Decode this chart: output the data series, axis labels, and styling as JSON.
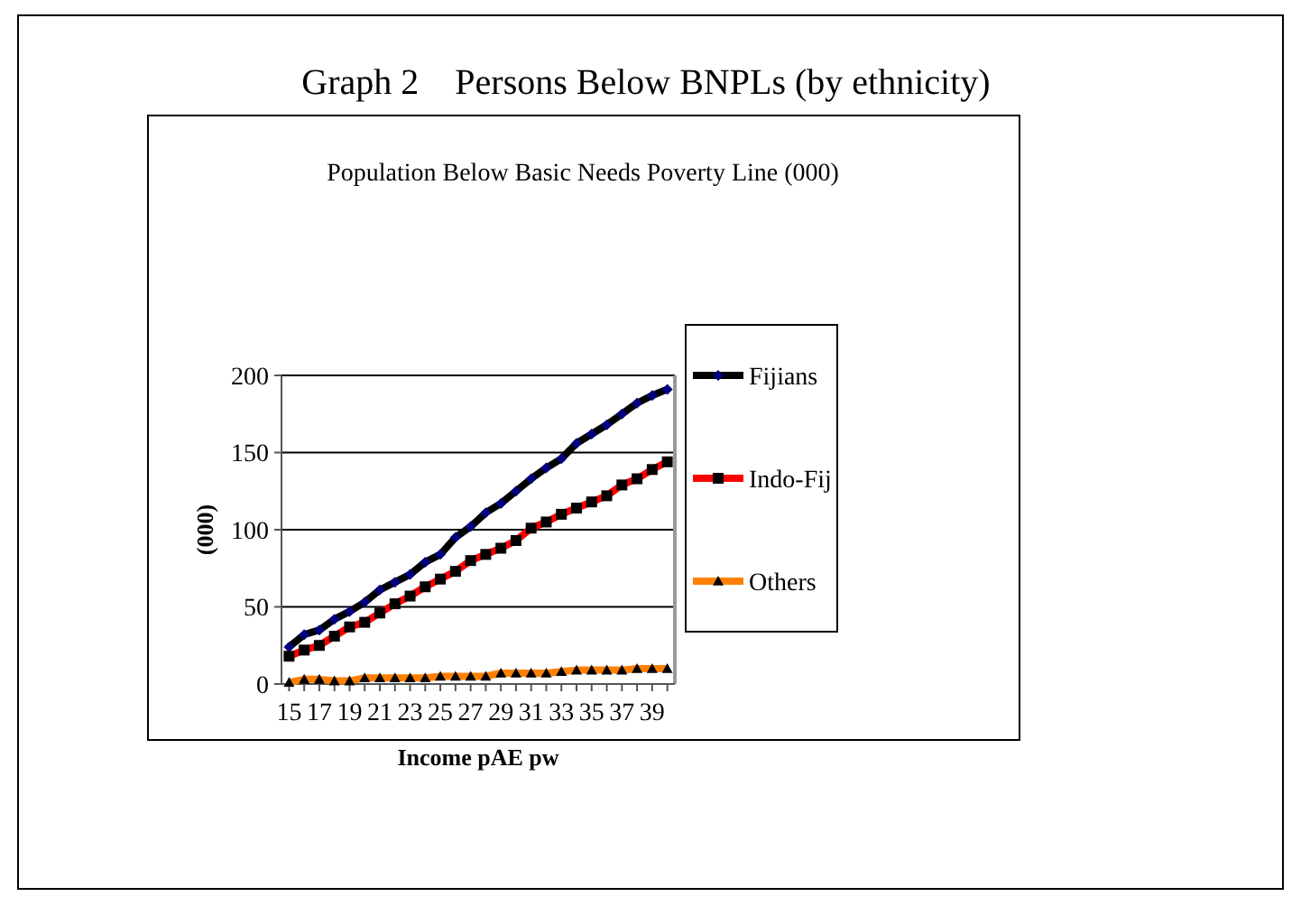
{
  "chart_data": {
    "type": "line",
    "title": "Graph 2    Persons Below BNPLs (by ethnicity)",
    "subtitle": "Population Below Basic Needs Poverty Line (000)",
    "xlabel": "Income pAE pw",
    "ylabel": "(000)",
    "x": [
      15,
      16,
      17,
      18,
      19,
      20,
      21,
      22,
      23,
      24,
      25,
      26,
      27,
      28,
      29,
      30,
      31,
      32,
      33,
      34,
      35,
      36,
      37,
      38,
      39,
      40
    ],
    "xlim": [
      14.5,
      40.5
    ],
    "xticks": [
      15,
      17,
      19,
      21,
      23,
      25,
      27,
      29,
      31,
      33,
      35,
      37,
      39
    ],
    "ylim": [
      0,
      200
    ],
    "yticks": [
      0,
      50,
      100,
      150,
      200
    ],
    "grid": "y",
    "legend": "right",
    "series": [
      {
        "name": "Fijians",
        "color": "#000000",
        "marker": "diamond",
        "values": [
          24,
          32,
          35,
          42,
          47,
          53,
          61,
          66,
          71,
          79,
          84,
          95,
          102,
          111,
          117,
          125,
          133,
          140,
          146,
          156,
          162,
          168,
          175,
          182,
          187,
          191
        ]
      },
      {
        "name": "Indo-Fij",
        "color": "#ff0000",
        "marker": "square",
        "values": [
          18,
          22,
          25,
          31,
          37,
          40,
          46,
          52,
          57,
          63,
          68,
          73,
          80,
          84,
          88,
          93,
          101,
          105,
          110,
          114,
          118,
          122,
          129,
          133,
          139,
          144
        ]
      },
      {
        "name": "Others",
        "color": "#ff8000",
        "marker": "triangle",
        "values": [
          1,
          3,
          3,
          2,
          2,
          4,
          4,
          4,
          4,
          4,
          5,
          5,
          5,
          5,
          7,
          7,
          7,
          7,
          8,
          9,
          9,
          9,
          9,
          10,
          10,
          10
        ]
      }
    ]
  }
}
